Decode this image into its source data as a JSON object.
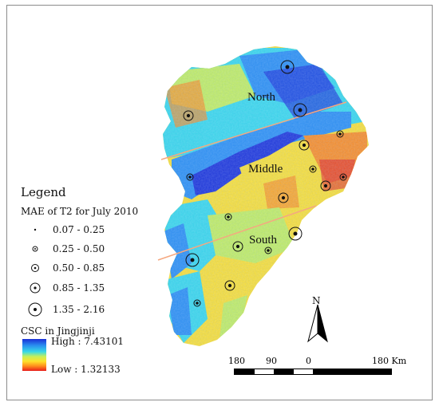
{
  "map": {
    "regions": [
      "North",
      "Middle",
      "South"
    ],
    "colors": {
      "high": "#1a2fd6",
      "mid_blue": "#2a8ef0",
      "cyan": "#37d9e8",
      "green": "#c6f05a",
      "yellow": "#ffe12b",
      "orange": "#ff8c1c",
      "low": "#e81c1c",
      "divider": "#f5a880"
    }
  },
  "legend": {
    "title": "Legend",
    "subtitle": "MAE of T2 for July 2010",
    "classes": [
      {
        "label": "0.07 - 0.25"
      },
      {
        "label": "0.25 - 0.50"
      },
      {
        "label": "0.50 - 0.85"
      },
      {
        "label": "0.85 - 1.35"
      },
      {
        "label": "1.35 - 2.16"
      }
    ],
    "csc_title": "CSC in Jingjinji",
    "high_label": "High : 7.43101",
    "low_label": "Low : 1.32133"
  },
  "north_arrow": {
    "label": "N"
  },
  "scale_bar": {
    "labels": [
      "180",
      "90",
      "0",
      "180 Km"
    ]
  }
}
